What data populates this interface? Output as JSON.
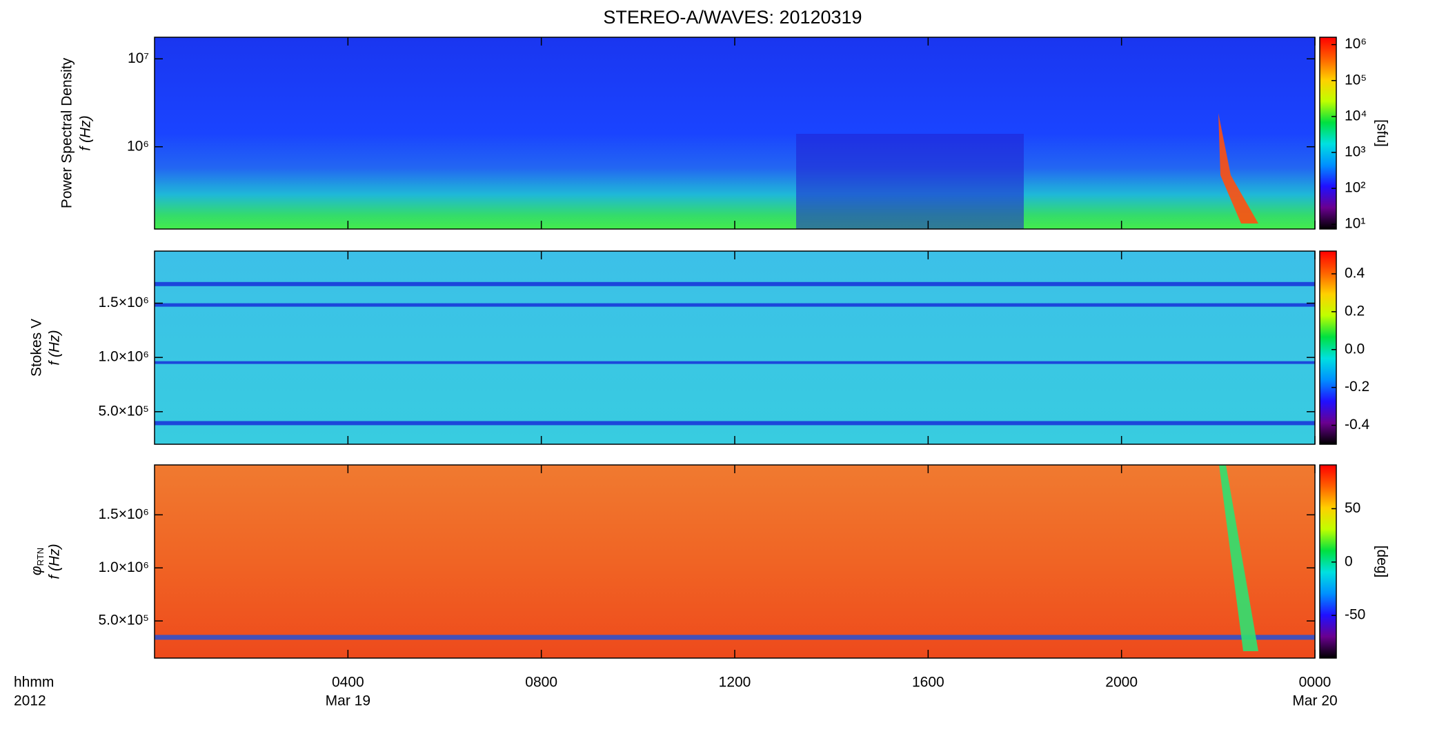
{
  "title": "STEREO-A/WAVES: 20120319",
  "colormap": [
    "#000000",
    "#6a0090",
    "#2010ff",
    "#0090ff",
    "#00e0e0",
    "#00e040",
    "#c0ff00",
    "#ffd000",
    "#ff6000",
    "#ff0000"
  ],
  "x_axis": {
    "xlim": [
      0,
      24
    ],
    "xticks": [
      {
        "value": 4,
        "label": "0400"
      },
      {
        "value": 8,
        "label": "0800"
      },
      {
        "value": 12,
        "label": "1200"
      },
      {
        "value": 16,
        "label": "1600"
      },
      {
        "value": 20,
        "label": "2000"
      },
      {
        "value": 24,
        "label": "0000"
      }
    ],
    "date_labels": [
      {
        "value": 4,
        "label": "Mar 19"
      },
      {
        "value": 24,
        "label": "Mar 20"
      }
    ],
    "label_lines": [
      "hhmm",
      "2012"
    ]
  },
  "chart_data": [
    {
      "type": "heatmap",
      "ylabel": [
        "Power Spectral Density",
        "f (Hz)"
      ],
      "log_y": true,
      "ylim": [
        116000,
        17600000
      ],
      "yticks": [
        {
          "value": 1000000,
          "label": "10⁶"
        },
        {
          "value": 10000000,
          "label": "10⁷"
        }
      ],
      "colorbar": {
        "label": "[sfu]",
        "log": true,
        "lim": [
          7.4,
          1600000
        ],
        "ticks": [
          {
            "value": 10,
            "label": "10¹"
          },
          {
            "value": 100,
            "label": "10²"
          },
          {
            "value": 1000,
            "label": "10³"
          },
          {
            "value": 10000,
            "label": "10⁴"
          },
          {
            "value": 100000,
            "label": "10⁵"
          },
          {
            "value": 1000000,
            "label": "10⁶"
          }
        ]
      }
    },
    {
      "type": "heatmap",
      "ylabel": [
        "Stokes V",
        "f (Hz)"
      ],
      "log_y": false,
      "ylim": [
        200000,
        1980000
      ],
      "yticks": [
        {
          "value": 500000,
          "label": "5.0×10⁵"
        },
        {
          "value": 1000000,
          "label": "1.0×10⁶"
        },
        {
          "value": 1500000,
          "label": "1.5×10⁶"
        }
      ],
      "colorbar": {
        "label": null,
        "log": false,
        "lim": [
          -0.5,
          0.52
        ],
        "ticks": [
          -0.4,
          -0.2,
          {
            "value": 0,
            "label": "0.0"
          },
          0.2,
          0.4
        ]
      }
    },
    {
      "type": "heatmap",
      "ylabel": [
        "φ",
        "f (Hz)"
      ],
      "ylabel_sub": "RTN",
      "log_y": false,
      "ylim": [
        150000,
        1970000
      ],
      "yticks": [
        {
          "value": 500000,
          "label": "5.0×10⁵"
        },
        {
          "value": 1000000,
          "label": "1.0×10⁶"
        },
        {
          "value": 1500000,
          "label": "1.5×10⁶"
        }
      ],
      "colorbar": {
        "label": "[deg]",
        "log": false,
        "lim": [
          -90,
          91
        ],
        "ticks": [
          -50,
          0,
          50
        ]
      }
    }
  ]
}
